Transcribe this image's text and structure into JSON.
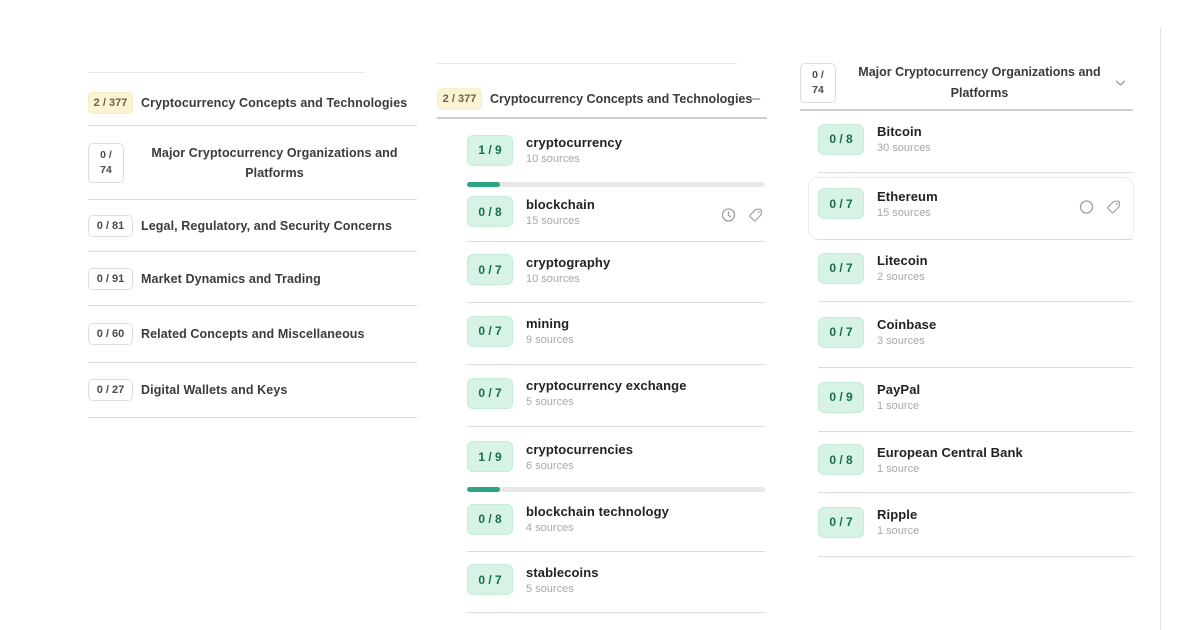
{
  "colors": {
    "mint_badge_bg": "#d6f3e5",
    "mint_badge_text": "#156e52",
    "yellow_badge_bg": "#fbf3d4",
    "progress_fill": "#2aa481",
    "progress_track": "#e8e8e8",
    "separator": "#dcdcdc"
  },
  "left_panel": {
    "items": [
      {
        "count": "2 / 377",
        "label": "Cryptocurrency Concepts and Technologies",
        "badge_style": "yellow"
      },
      {
        "count_line1": "0 /",
        "count_line2": "74",
        "label": "Major Cryptocurrency Organizations and Platforms",
        "badge_style": "white-tall"
      },
      {
        "count": "0 / 81",
        "label": "Legal, Regulatory, and Security Concerns",
        "badge_style": "white"
      },
      {
        "count": "0 / 91",
        "label": "Market Dynamics and Trading",
        "badge_style": "white"
      },
      {
        "count": "0 / 60",
        "label": "Related Concepts and Miscellaneous",
        "badge_style": "white"
      },
      {
        "count": "0 / 27",
        "label": "Digital Wallets and Keys",
        "badge_style": "white"
      }
    ]
  },
  "middle_panel": {
    "header": {
      "count": "2 / 377",
      "label": "Cryptocurrency Concepts and Technologies",
      "collapse_icon": "minus-icon"
    },
    "items": [
      {
        "count": "1 / 9",
        "title": "cryptocurrency",
        "sources": "10 sources",
        "progress_percent": 11
      },
      {
        "count": "0 / 8",
        "title": "blockchain",
        "sources": "15 sources",
        "icons": [
          "clock-icon",
          "tag-icon"
        ]
      },
      {
        "count": "0 / 7",
        "title": "cryptography",
        "sources": "10 sources"
      },
      {
        "count": "0 / 7",
        "title": "mining",
        "sources": "9 sources"
      },
      {
        "count": "0 / 7",
        "title": "cryptocurrency exchange",
        "sources": "5 sources"
      },
      {
        "count": "1 / 9",
        "title": "cryptocurrencies",
        "sources": "6 sources",
        "progress_percent": 11
      },
      {
        "count": "0 / 8",
        "title": "blockchain technology",
        "sources": "4 sources"
      },
      {
        "count": "0 / 7",
        "title": "stablecoins",
        "sources": "5 sources"
      }
    ]
  },
  "right_panel": {
    "header": {
      "count_line1": "0 /",
      "count_line2": "74",
      "label": "Major Cryptocurrency Organizations and Platforms",
      "collapse_icon": "chevron-down-icon"
    },
    "items": [
      {
        "count": "0 / 8",
        "title": "Bitcoin",
        "sources": "30 sources"
      },
      {
        "count": "0 / 7",
        "title": "Ethereum",
        "sources": "15 sources",
        "icons": [
          "circle-icon",
          "tag-icon"
        ],
        "selected": true
      },
      {
        "count": "0 / 7",
        "title": "Litecoin",
        "sources": "2 sources"
      },
      {
        "count": "0 / 7",
        "title": "Coinbase",
        "sources": "3 sources"
      },
      {
        "count": "0 / 9",
        "title": "PayPal",
        "sources": "1 source"
      },
      {
        "count": "0 / 8",
        "title": "European Central Bank",
        "sources": "1 source"
      },
      {
        "count": "0 / 7",
        "title": "Ripple",
        "sources": "1 source"
      }
    ]
  }
}
